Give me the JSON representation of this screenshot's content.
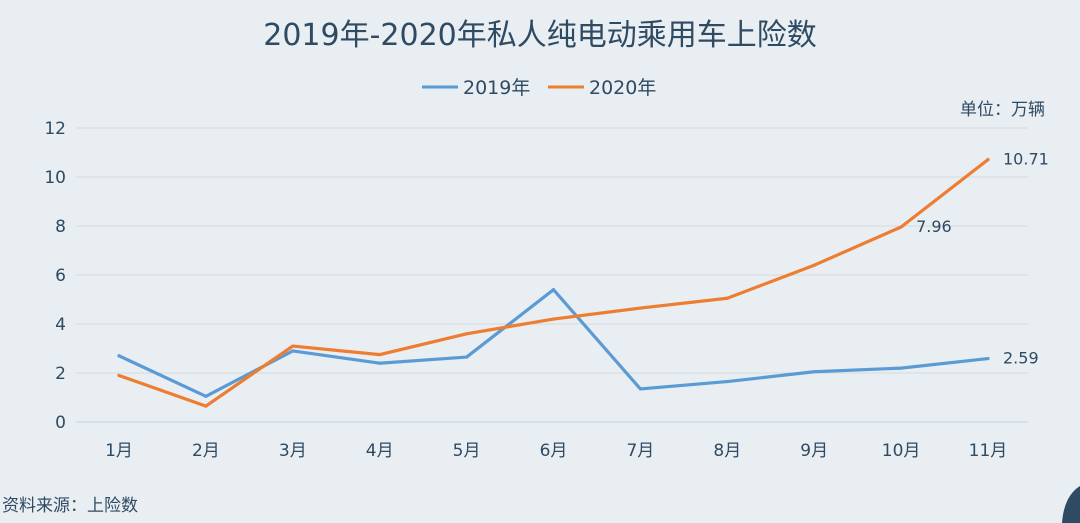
{
  "chart_data": {
    "type": "line",
    "title": "2019年-2020年私人纯电动乘用车上险数",
    "unit_label": "单位：万辆",
    "source": "资料来源：上险数",
    "categories": [
      "1月",
      "2月",
      "3月",
      "4月",
      "5月",
      "6月",
      "7月",
      "8月",
      "9月",
      "10月",
      "11月"
    ],
    "ylim": [
      0,
      12
    ],
    "yticks": [
      0,
      2,
      4,
      6,
      8,
      10,
      12
    ],
    "grid": true,
    "legend_position": "top-center",
    "series": [
      {
        "name": "2019年",
        "color": "#5b9bd5",
        "values": [
          2.7,
          1.05,
          2.9,
          2.4,
          2.65,
          5.4,
          1.35,
          1.65,
          2.05,
          2.2,
          2.59
        ],
        "data_labels": {
          "10": "2.59"
        }
      },
      {
        "name": "2020年",
        "color": "#ed7d31",
        "values": [
          1.9,
          0.65,
          3.1,
          2.75,
          3.6,
          4.2,
          4.65,
          5.05,
          6.4,
          7.96,
          10.71
        ],
        "data_labels": {
          "9": "7.96",
          "10": "10.71"
        }
      }
    ]
  }
}
